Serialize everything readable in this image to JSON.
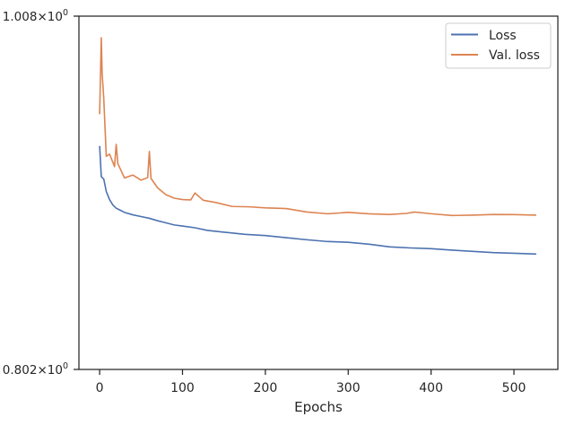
{
  "chart_data": {
    "type": "line",
    "xlabel": "Epochs",
    "ylabel": "",
    "yscale": "log",
    "xlim": [
      -25,
      553
    ],
    "ylim": [
      0.802,
      1.008
    ],
    "grid": false,
    "legend_position": "top-right",
    "x_ticks": [
      0,
      100,
      200,
      300,
      400,
      500
    ],
    "x_tick_labels": [
      "0",
      "100",
      "200",
      "300",
      "400",
      "500"
    ],
    "y_tick_labels": [
      {
        "value": 1.008,
        "mantissa": "1.008",
        "times": "×",
        "base": "10",
        "exponent": "0"
      },
      {
        "value": 0.802,
        "mantissa": "0.802",
        "times": "×",
        "base": "10",
        "exponent": "0"
      }
    ],
    "series": [
      {
        "name": "Loss",
        "color": "#4c72b0",
        "x": [
          0,
          2,
          5,
          8,
          12,
          16,
          20,
          25,
          30,
          40,
          50,
          60,
          70,
          80,
          90,
          100,
          115,
          130,
          150,
          175,
          200,
          225,
          250,
          275,
          300,
          325,
          350,
          375,
          400,
          425,
          450,
          475,
          500,
          527
        ],
        "y": [
          0.9268,
          0.9086,
          0.9071,
          0.8999,
          0.8951,
          0.892,
          0.8902,
          0.889,
          0.8878,
          0.8864,
          0.8854,
          0.8844,
          0.883,
          0.8818,
          0.8806,
          0.88,
          0.879,
          0.8775,
          0.8765,
          0.8753,
          0.8746,
          0.8734,
          0.8722,
          0.8712,
          0.8708,
          0.8697,
          0.8682,
          0.8676,
          0.8672,
          0.8664,
          0.8657,
          0.865,
          0.8646,
          0.8642
        ]
      },
      {
        "name": "Val. loss",
        "color": "#dd8452",
        "x": [
          0,
          2,
          3,
          5,
          8,
          12,
          18,
          20,
          22,
          30,
          40,
          50,
          58,
          60,
          62,
          70,
          80,
          90,
          100,
          110,
          115,
          125,
          140,
          160,
          180,
          200,
          225,
          250,
          275,
          300,
          325,
          350,
          370,
          380,
          400,
          425,
          450,
          475,
          500,
          527
        ],
        "y": [
          0.946,
          0.994,
          0.9715,
          0.9555,
          0.9206,
          0.9219,
          0.9145,
          0.9277,
          0.9162,
          0.9078,
          0.9095,
          0.9065,
          0.908,
          0.9235,
          0.9075,
          0.902,
          0.898,
          0.896,
          0.8952,
          0.895,
          0.899,
          0.8948,
          0.8935,
          0.8912,
          0.891,
          0.8904,
          0.89,
          0.888,
          0.887,
          0.8878,
          0.887,
          0.8866,
          0.8872,
          0.888,
          0.887,
          0.886,
          0.8862,
          0.8866,
          0.8865,
          0.8862
        ]
      }
    ]
  }
}
